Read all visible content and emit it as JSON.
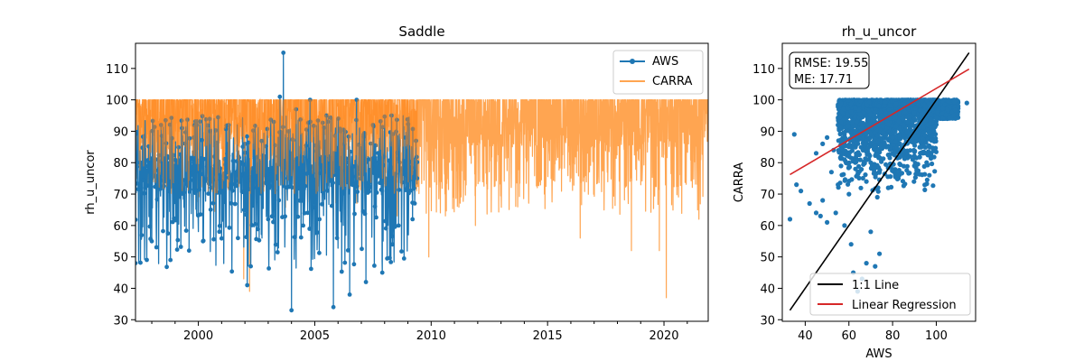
{
  "chart_data": [
    {
      "type": "line",
      "title": "Saddle",
      "xlabel": "",
      "ylabel": "rh_u_uncor",
      "xlim": [
        1997.3,
        2021.9
      ],
      "ylim": [
        29.5,
        118.0
      ],
      "xticks": [
        2000,
        2005,
        2010,
        2015,
        2020
      ],
      "yticks": [
        30,
        40,
        50,
        60,
        70,
        80,
        90,
        100,
        110
      ],
      "legend": {
        "placement": "top-right",
        "entries": [
          "AWS",
          "CARRA"
        ]
      },
      "series": [
        {
          "name": "AWS",
          "color": "#1f77b4",
          "marker": "circle",
          "range": [
            1997.3,
            2009.4
          ],
          "points": [
            [
              1997.3,
              48
            ],
            [
              1997.5,
              80
            ],
            [
              1998.0,
              55
            ],
            [
              1998.4,
              92
            ],
            [
              1998.8,
              49
            ],
            [
              1999.3,
              91
            ],
            [
              1999.6,
              52
            ],
            [
              1999.8,
              88
            ],
            [
              2000.2,
              55
            ],
            [
              2000.5,
              90
            ],
            [
              2000.9,
              58
            ],
            [
              2001.3,
              92
            ],
            [
              2001.7,
              56
            ],
            [
              2002.0,
              86
            ],
            [
              2002.1,
              41
            ],
            [
              2002.25,
              47
            ],
            [
              2002.5,
              72
            ],
            [
              2003.0,
              62
            ],
            [
              2003.5,
              101
            ],
            [
              2003.65,
              115
            ],
            [
              2003.85,
              75
            ],
            [
              2004.0,
              33
            ],
            [
              2004.2,
              97
            ],
            [
              2004.5,
              60
            ],
            [
              2004.8,
              100
            ],
            [
              2005.2,
              62
            ],
            [
              2005.5,
              95
            ],
            [
              2005.8,
              34
            ],
            [
              2006.1,
              90
            ],
            [
              2006.5,
              38
            ],
            [
              2006.8,
              100
            ],
            [
              2007.2,
              42
            ],
            [
              2007.5,
              92
            ],
            [
              2007.9,
              45
            ],
            [
              2008.3,
              95
            ],
            [
              2008.6,
              60
            ],
            [
              2008.9,
              88
            ],
            [
              2009.2,
              62
            ],
            [
              2009.4,
              75
            ]
          ]
        },
        {
          "name": "CARRA",
          "color": "#ff7f0e",
          "marker": "none",
          "range": [
            1997.3,
            2021.9
          ],
          "points": [
            [
              2001.95,
              43
            ],
            [
              2002.2,
              39
            ],
            [
              2009.9,
              50
            ],
            [
              2011.9,
              60
            ],
            [
              2016.4,
              56
            ],
            [
              2018.6,
              52
            ],
            [
              2019.8,
              52
            ],
            [
              2020.1,
              37
            ],
            [
              2021.5,
              62
            ]
          ]
        }
      ]
    },
    {
      "type": "scatter",
      "title": "rh_u_uncor",
      "xlabel": "AWS",
      "ylabel": "CARRA",
      "xlim": [
        29.5,
        118.0
      ],
      "ylim": [
        29.5,
        118.0
      ],
      "xticks": [
        40,
        60,
        80,
        100
      ],
      "yticks": [
        30,
        40,
        50,
        60,
        70,
        80,
        90,
        100,
        110
      ],
      "annotation": [
        "RMSE: 19.55",
        "ME: 17.71"
      ],
      "legend": {
        "placement": "bottom-right",
        "entries": [
          "1:1 Line",
          "Linear Regression"
        ]
      },
      "one_to_one_line": [
        [
          33,
          33
        ],
        [
          115,
          115
        ]
      ],
      "linear_regression": [
        [
          33,
          76.2
        ],
        [
          115,
          109.8
        ]
      ],
      "points": [
        [
          33,
          62
        ],
        [
          35,
          89
        ],
        [
          36,
          73
        ],
        [
          38,
          71
        ],
        [
          42,
          67
        ],
        [
          45,
          64
        ],
        [
          47,
          63
        ],
        [
          48,
          68
        ],
        [
          50,
          61
        ],
        [
          52,
          77
        ],
        [
          54,
          64
        ],
        [
          55,
          73
        ],
        [
          58,
          60
        ],
        [
          60,
          70
        ],
        [
          61,
          54
        ],
        [
          62,
          45
        ],
        [
          64,
          39
        ],
        [
          66,
          43
        ],
        [
          68,
          48
        ],
        [
          70,
          58
        ],
        [
          72,
          47
        ],
        [
          74,
          51
        ],
        [
          45,
          83
        ],
        [
          50,
          88
        ],
        [
          55,
          92
        ],
        [
          60,
          85
        ],
        [
          65,
          90
        ],
        [
          70,
          80
        ],
        [
          75,
          95
        ],
        [
          80,
          88
        ],
        [
          85,
          92
        ],
        [
          90,
          96
        ],
        [
          95,
          98
        ],
        [
          100,
          99
        ],
        [
          105,
          97
        ],
        [
          110,
          98
        ],
        [
          114,
          99
        ],
        [
          108,
          95
        ],
        [
          103,
          94
        ],
        [
          98,
          91
        ],
        [
          93,
          85
        ],
        [
          88,
          82
        ],
        [
          83,
          76
        ],
        [
          78,
          72
        ],
        [
          73,
          69
        ],
        [
          68,
          74
        ],
        [
          63,
          78
        ],
        [
          58,
          81
        ],
        [
          53,
          84
        ],
        [
          48,
          86
        ]
      ],
      "point_color": "#1f77b4"
    }
  ]
}
